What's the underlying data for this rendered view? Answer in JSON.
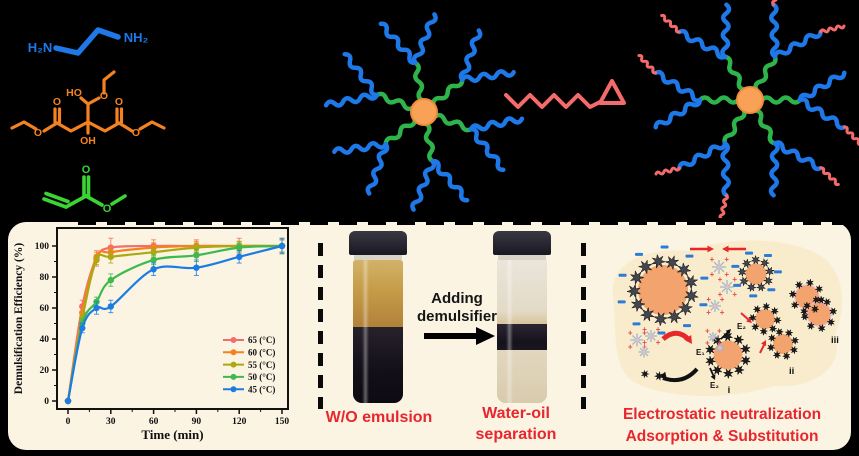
{
  "scheme": {
    "molecules": {
      "diamine": {
        "label_left": "H₂N",
        "label_right": "NH₂",
        "color": "#1E78E8"
      },
      "citrate": {
        "label_ho": "HO",
        "label_oh": "OH",
        "label_o": "O",
        "color": "#F58220"
      },
      "acrylate": {
        "label_o": "O",
        "color": "#3BD435"
      }
    },
    "polymer": {
      "core_color": "#F9A257",
      "inner_arm_color": "#2EB44B",
      "outer_arm_color": "#1E78E8",
      "graft_color": "#F56A6A"
    }
  },
  "chart_data": {
    "type": "line",
    "x": [
      0,
      10,
      20,
      30,
      60,
      90,
      120,
      150
    ],
    "series": [
      {
        "name": "65 (°C)",
        "color": "#F26E6E",
        "values": [
          0,
          61,
          92,
          99,
          100,
          100,
          100,
          100
        ],
        "errors": [
          0,
          4,
          5,
          6,
          4,
          4,
          5,
          5
        ]
      },
      {
        "name": "60 (°C)",
        "color": "#F5821F",
        "values": [
          0,
          57,
          93,
          96,
          99,
          100,
          100,
          100
        ],
        "errors": [
          0,
          4,
          3,
          4,
          3,
          3,
          3,
          4
        ]
      },
      {
        "name": "55 (°C)",
        "color": "#ABA912",
        "values": [
          0,
          53,
          91,
          93,
          96,
          99,
          100,
          100
        ],
        "errors": [
          0,
          3,
          3,
          4,
          3,
          3,
          3,
          4
        ]
      },
      {
        "name": "50 (°C)",
        "color": "#3DB94D",
        "values": [
          0,
          50,
          64,
          78,
          91,
          94,
          99,
          100
        ],
        "errors": [
          0,
          3,
          3,
          4,
          3,
          4,
          3,
          4
        ]
      },
      {
        "name": "45 (°C)",
        "color": "#1B7CE4",
        "values": [
          0,
          47,
          60,
          61,
          85,
          86,
          93,
          100
        ],
        "errors": [
          0,
          3,
          4,
          4,
          4,
          5,
          4,
          5
        ]
      }
    ],
    "xlabel": "Time (min)",
    "ylabel": "Demulsification Efficiency (%)",
    "xticks": [
      0,
      30,
      60,
      90,
      120,
      150
    ],
    "yticks": [
      0,
      20,
      40,
      60,
      80,
      100
    ],
    "xlim": [
      0,
      150
    ],
    "ylim": [
      0,
      100
    ],
    "grid": false,
    "legend_position": "lower right"
  },
  "separation": {
    "arrow_label": [
      "Adding",
      "demulsifier"
    ],
    "left_caption": "W/O emulsion",
    "right_caption": [
      "Water-oil",
      "separation"
    ],
    "caption_color": "#E8262C"
  },
  "mechanism": {
    "labels": {
      "e1": "E₁",
      "e2": "E₂",
      "step_i": "i",
      "step_ii": "ii",
      "step_iii": "iii"
    },
    "caption": [
      "Electrostatic neutralization",
      "Adsorption & Substitution"
    ],
    "caption_color": "#E8262C",
    "charge_color": "#2E7BD6",
    "droplet_color": "#F2A36E"
  }
}
